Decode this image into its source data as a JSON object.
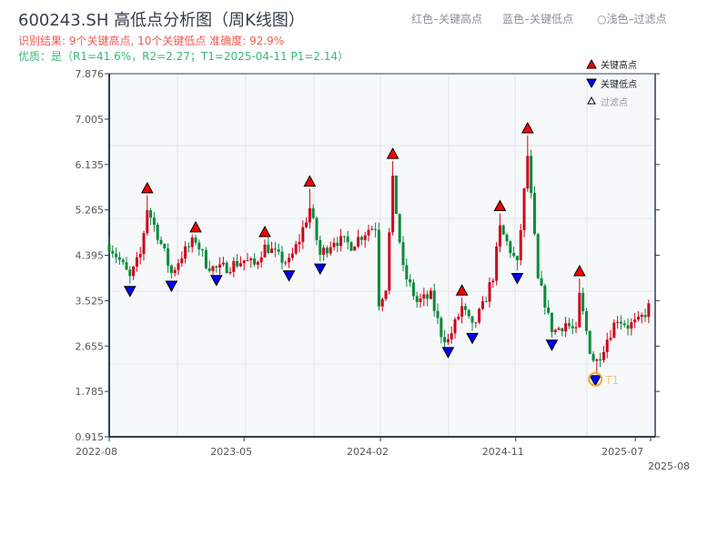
{
  "header": {
    "title": "600243.SH 高低点分析图（周K线图）",
    "result": "识别结果: 9个关键高点, 10个关键低点  准确度: 92.9%",
    "quality": "优质：是（R1=41.6%，R2=2.27；T1=2025-04-11 P1=2.14）"
  },
  "hints": [
    "红色–关键高点",
    "蓝色–关键低点",
    "○浅色–过滤点"
  ],
  "chart_data": {
    "type": "candlestick",
    "title": "600243.SH 高低点分析图（周K线图）",
    "ylim": [
      0.915,
      7.876
    ],
    "yticks": [
      "0.915",
      "1.785",
      "2.655",
      "3.525",
      "4.395",
      "5.265",
      "6.135",
      "7.005",
      "7.876"
    ],
    "xticks": [
      {
        "label": "2022-08",
        "date": "2022-08-01"
      },
      {
        "label": "2023-05",
        "date": "2023-05-01"
      },
      {
        "label": "2024-02",
        "date": "2024-02-01"
      },
      {
        "label": "2024-11",
        "date": "2024-11-01"
      },
      {
        "label": "2025-07",
        "date": "2025-07-01"
      },
      {
        "label": "2025-08",
        "date": "2025-08-01"
      }
    ],
    "xrange": [
      "2022-08-01",
      "2025-08-01"
    ],
    "legend": {
      "position": "top-right",
      "items": [
        "关键高点",
        "关键低点",
        "过滤点"
      ]
    },
    "colors": {
      "up": "#d0021b",
      "down": "#0a8a3a",
      "high": "#ff0000",
      "low": "#0000ff",
      "t1": "#f5a623"
    },
    "close_path": [
      [
        "2022-08-01",
        4.6
      ],
      [
        "2022-08-22",
        4.3
      ],
      [
        "2022-09-12",
        3.95
      ],
      [
        "2022-10-03",
        4.4
      ],
      [
        "2022-10-17",
        5.3
      ],
      [
        "2022-11-07",
        4.8
      ],
      [
        "2022-12-05",
        4.05
      ],
      [
        "2022-12-26",
        4.4
      ],
      [
        "2023-01-23",
        4.7
      ],
      [
        "2023-02-13",
        4.25
      ],
      [
        "2023-03-06",
        4.1
      ],
      [
        "2023-04-03",
        4.2
      ],
      [
        "2023-05-01",
        4.3
      ],
      [
        "2023-05-22",
        4.2
      ],
      [
        "2023-06-12",
        4.6
      ],
      [
        "2023-07-10",
        4.35
      ],
      [
        "2023-07-31",
        4.25
      ],
      [
        "2023-08-21",
        4.7
      ],
      [
        "2023-09-11",
        5.3
      ],
      [
        "2023-10-02",
        4.4
      ],
      [
        "2023-10-30",
        4.7
      ],
      [
        "2023-12-04",
        4.6
      ],
      [
        "2024-01-08",
        4.9
      ],
      [
        "2024-01-22",
        4.95
      ],
      [
        "2024-01-29",
        3.5
      ],
      [
        "2024-02-12",
        3.8
      ],
      [
        "2024-02-26",
        5.8
      ],
      [
        "2024-03-18",
        4.1
      ],
      [
        "2024-04-15",
        3.5
      ],
      [
        "2024-05-13",
        3.6
      ],
      [
        "2024-06-03",
        2.9
      ],
      [
        "2024-06-17",
        2.75
      ],
      [
        "2024-07-15",
        3.4
      ],
      [
        "2024-08-05",
        3.0
      ],
      [
        "2024-08-26",
        3.4
      ],
      [
        "2024-09-16",
        4.0
      ],
      [
        "2024-09-30",
        4.9
      ],
      [
        "2024-10-21",
        4.5
      ],
      [
        "2024-11-04",
        4.2
      ],
      [
        "2024-11-25",
        6.3
      ],
      [
        "2024-12-16",
        3.9
      ],
      [
        "2024-12-30",
        3.5
      ],
      [
        "2025-01-13",
        2.9
      ],
      [
        "2025-02-10",
        3.1
      ],
      [
        "2025-03-03",
        2.9
      ],
      [
        "2025-03-10",
        3.6
      ],
      [
        "2025-03-31",
        2.6
      ],
      [
        "2025-04-11",
        2.3
      ],
      [
        "2025-05-05",
        2.8
      ],
      [
        "2025-05-26",
        3.2
      ],
      [
        "2025-06-16",
        3.05
      ],
      [
        "2025-07-07",
        3.1
      ],
      [
        "2025-08-01",
        3.45
      ]
    ],
    "key_highs": [
      [
        "2022-10-17",
        5.54
      ],
      [
        "2023-01-23",
        4.79
      ],
      [
        "2023-06-12",
        4.7
      ],
      [
        "2023-09-11",
        5.67
      ],
      [
        "2024-02-26",
        6.2
      ],
      [
        "2024-07-15",
        3.58
      ],
      [
        "2024-09-30",
        5.2
      ],
      [
        "2024-11-25",
        6.69
      ],
      [
        "2025-03-10",
        3.95
      ]
    ],
    "key_lows": [
      [
        "2022-09-12",
        3.85
      ],
      [
        "2022-12-05",
        3.95
      ],
      [
        "2023-03-06",
        4.06
      ],
      [
        "2023-07-31",
        4.15
      ],
      [
        "2023-10-02",
        4.28
      ],
      [
        "2024-06-17",
        2.68
      ],
      [
        "2024-08-05",
        2.95
      ],
      [
        "2024-11-04",
        4.1
      ],
      [
        "2025-01-13",
        2.82
      ],
      [
        "2025-04-11",
        2.14
      ]
    ],
    "t1": {
      "label": "T1",
      "date": "2025-04-11",
      "price": 2.14
    }
  }
}
